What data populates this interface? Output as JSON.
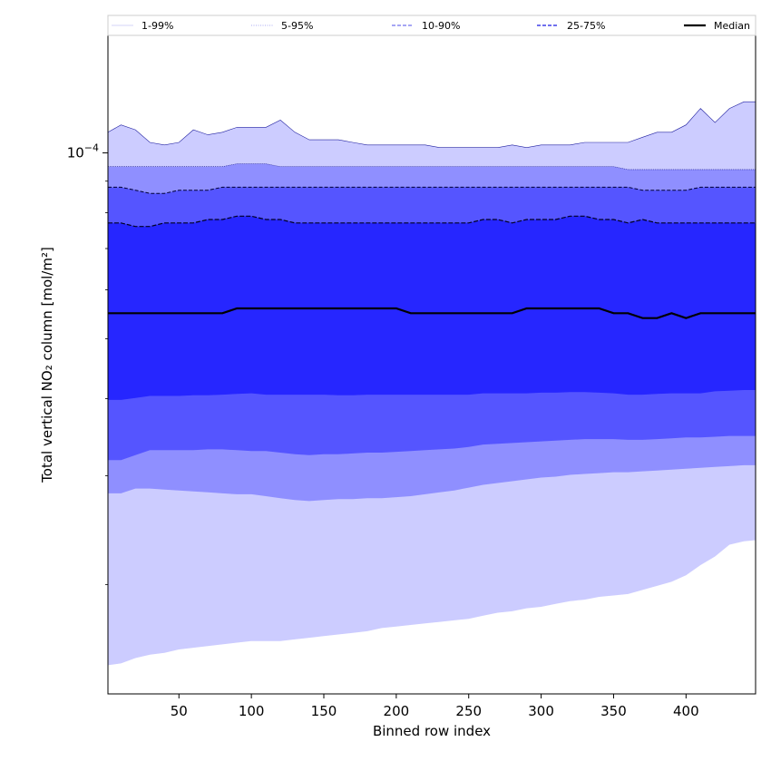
{
  "chart_data": {
    "type": "area",
    "xlabel": "Binned row index",
    "ylabel": "Total vertical NO₂ column [mol/m²]",
    "y_scale": "log",
    "xlim": [
      1,
      448
    ],
    "ylim": [
      1.33e-05,
      0.000155
    ],
    "x_ticks": [
      50,
      100,
      150,
      200,
      250,
      300,
      350,
      400
    ],
    "y_major_ticks": [
      {
        "value": 0.0001,
        "label_base": "10",
        "label_exp": "−4"
      }
    ],
    "y_minor_ticks": [
      2e-05,
      3e-05,
      4e-05,
      5e-05,
      6e-05,
      7e-05,
      8e-05,
      9e-05
    ],
    "grid": false,
    "legend": {
      "placement": "top",
      "entries": [
        {
          "label": "1-99%",
          "color": "#c8c8f5",
          "dash": "solid"
        },
        {
          "label": "5-95%",
          "color": "#8c8cf0",
          "dash": "dotted"
        },
        {
          "label": "10-90%",
          "color": "#7070ee",
          "dash": "dashed"
        },
        {
          "label": "25-75%",
          "color": "#4040e8",
          "dash": "dashed"
        },
        {
          "label": "Median",
          "color": "#000000",
          "dash": "solid"
        }
      ]
    },
    "band_colors": {
      "p01_p99": "#ccccff",
      "p05_p95": "#8f8fff",
      "p10_p90": "#5555ff",
      "p25_p75": "#2626ff"
    },
    "x": [
      1,
      10,
      20,
      30,
      40,
      50,
      60,
      70,
      80,
      90,
      100,
      110,
      120,
      130,
      140,
      150,
      160,
      170,
      180,
      190,
      200,
      210,
      220,
      230,
      240,
      250,
      260,
      270,
      280,
      290,
      300,
      310,
      320,
      330,
      340,
      350,
      360,
      370,
      380,
      390,
      400,
      410,
      420,
      430,
      440,
      448
    ],
    "series": [
      {
        "name": "1-99%",
        "kind": "upper",
        "values": [
          0.000108,
          0.000111,
          0.000109,
          0.000104,
          0.000103,
          0.000104,
          0.000109,
          0.000107,
          0.000108,
          0.00011,
          0.00011,
          0.00011,
          0.000113,
          0.000108,
          0.000105,
          0.000105,
          0.000105,
          0.000104,
          0.000103,
          0.000103,
          0.000103,
          0.000103,
          0.000103,
          0.000102,
          0.000102,
          0.000102,
          0.000102,
          0.000102,
          0.000103,
          0.000102,
          0.000103,
          0.000103,
          0.000103,
          0.000104,
          0.000104,
          0.000104,
          0.000104,
          0.000106,
          0.000108,
          0.000108,
          0.000111,
          0.000118,
          0.000112,
          0.000118,
          0.000121,
          0.000121
        ]
      },
      {
        "name": "5-95%",
        "kind": "upper",
        "values": [
          9.5e-05,
          9.5e-05,
          9.5e-05,
          9.5e-05,
          9.5e-05,
          9.5e-05,
          9.5e-05,
          9.5e-05,
          9.5e-05,
          9.6e-05,
          9.6e-05,
          9.6e-05,
          9.5e-05,
          9.5e-05,
          9.5e-05,
          9.5e-05,
          9.5e-05,
          9.5e-05,
          9.5e-05,
          9.5e-05,
          9.5e-05,
          9.5e-05,
          9.5e-05,
          9.5e-05,
          9.5e-05,
          9.5e-05,
          9.5e-05,
          9.5e-05,
          9.5e-05,
          9.5e-05,
          9.5e-05,
          9.5e-05,
          9.5e-05,
          9.5e-05,
          9.5e-05,
          9.5e-05,
          9.4e-05,
          9.4e-05,
          9.4e-05,
          9.4e-05,
          9.4e-05,
          9.4e-05,
          9.4e-05,
          9.4e-05,
          9.4e-05,
          9.4e-05
        ]
      },
      {
        "name": "10-90%",
        "kind": "upper",
        "values": [
          8.8e-05,
          8.8e-05,
          8.7e-05,
          8.6e-05,
          8.6e-05,
          8.7e-05,
          8.7e-05,
          8.7e-05,
          8.8e-05,
          8.8e-05,
          8.8e-05,
          8.8e-05,
          8.8e-05,
          8.8e-05,
          8.8e-05,
          8.8e-05,
          8.8e-05,
          8.8e-05,
          8.8e-05,
          8.8e-05,
          8.8e-05,
          8.8e-05,
          8.8e-05,
          8.8e-05,
          8.8e-05,
          8.8e-05,
          8.8e-05,
          8.8e-05,
          8.8e-05,
          8.8e-05,
          8.8e-05,
          8.8e-05,
          8.8e-05,
          8.8e-05,
          8.8e-05,
          8.8e-05,
          8.8e-05,
          8.7e-05,
          8.7e-05,
          8.7e-05,
          8.7e-05,
          8.8e-05,
          8.8e-05,
          8.8e-05,
          8.8e-05,
          8.8e-05
        ]
      },
      {
        "name": "25-75%",
        "kind": "upper",
        "values": [
          7.7e-05,
          7.7e-05,
          7.6e-05,
          7.6e-05,
          7.7e-05,
          7.7e-05,
          7.7e-05,
          7.8e-05,
          7.8e-05,
          7.9e-05,
          7.9e-05,
          7.8e-05,
          7.8e-05,
          7.7e-05,
          7.7e-05,
          7.7e-05,
          7.7e-05,
          7.7e-05,
          7.7e-05,
          7.7e-05,
          7.7e-05,
          7.7e-05,
          7.7e-05,
          7.7e-05,
          7.7e-05,
          7.7e-05,
          7.8e-05,
          7.8e-05,
          7.7e-05,
          7.8e-05,
          7.8e-05,
          7.8e-05,
          7.9e-05,
          7.9e-05,
          7.8e-05,
          7.8e-05,
          7.7e-05,
          7.8e-05,
          7.7e-05,
          7.7e-05,
          7.7e-05,
          7.7e-05,
          7.7e-05,
          7.7e-05,
          7.7e-05,
          7.7e-05
        ]
      },
      {
        "name": "Median",
        "kind": "median",
        "values": [
          5.5e-05,
          5.5e-05,
          5.5e-05,
          5.5e-05,
          5.5e-05,
          5.5e-05,
          5.5e-05,
          5.5e-05,
          5.5e-05,
          5.6e-05,
          5.6e-05,
          5.6e-05,
          5.6e-05,
          5.6e-05,
          5.6e-05,
          5.6e-05,
          5.6e-05,
          5.6e-05,
          5.6e-05,
          5.6e-05,
          5.6e-05,
          5.5e-05,
          5.5e-05,
          5.5e-05,
          5.5e-05,
          5.5e-05,
          5.5e-05,
          5.5e-05,
          5.5e-05,
          5.6e-05,
          5.6e-05,
          5.6e-05,
          5.6e-05,
          5.6e-05,
          5.6e-05,
          5.5e-05,
          5.5e-05,
          5.4e-05,
          5.4e-05,
          5.5e-05,
          5.4e-05,
          5.5e-05,
          5.5e-05,
          5.5e-05,
          5.5e-05,
          5.5e-05
        ]
      },
      {
        "name": "25-75%",
        "kind": "lower",
        "values": [
          3.98e-05,
          3.98e-05,
          4.01e-05,
          4.04e-05,
          4.04e-05,
          4.04e-05,
          4.05e-05,
          4.05e-05,
          4.06e-05,
          4.07e-05,
          4.08e-05,
          4.06e-05,
          4.06e-05,
          4.06e-05,
          4.06e-05,
          4.06e-05,
          4.05e-05,
          4.05e-05,
          4.06e-05,
          4.06e-05,
          4.06e-05,
          4.06e-05,
          4.06e-05,
          4.06e-05,
          4.06e-05,
          4.06e-05,
          4.08e-05,
          4.08e-05,
          4.08e-05,
          4.08e-05,
          4.09e-05,
          4.09e-05,
          4.1e-05,
          4.1e-05,
          4.09e-05,
          4.08e-05,
          4.06e-05,
          4.06e-05,
          4.07e-05,
          4.08e-05,
          4.08e-05,
          4.08e-05,
          4.11e-05,
          4.12e-05,
          4.13e-05,
          4.13e-05
        ]
      },
      {
        "name": "10-90%",
        "kind": "lower",
        "values": [
          3.18e-05,
          3.18e-05,
          3.24e-05,
          3.3e-05,
          3.3e-05,
          3.3e-05,
          3.3e-05,
          3.31e-05,
          3.31e-05,
          3.3e-05,
          3.29e-05,
          3.29e-05,
          3.27e-05,
          3.25e-05,
          3.24e-05,
          3.25e-05,
          3.25e-05,
          3.26e-05,
          3.27e-05,
          3.27e-05,
          3.28e-05,
          3.29e-05,
          3.3e-05,
          3.31e-05,
          3.32e-05,
          3.34e-05,
          3.37e-05,
          3.38e-05,
          3.39e-05,
          3.4e-05,
          3.41e-05,
          3.42e-05,
          3.43e-05,
          3.44e-05,
          3.44e-05,
          3.44e-05,
          3.43e-05,
          3.43e-05,
          3.44e-05,
          3.45e-05,
          3.46e-05,
          3.46e-05,
          3.47e-05,
          3.48e-05,
          3.48e-05,
          3.48e-05
        ]
      },
      {
        "name": "5-95%",
        "kind": "lower",
        "values": [
          2.81e-05,
          2.81e-05,
          2.86e-05,
          2.86e-05,
          2.85e-05,
          2.84e-05,
          2.83e-05,
          2.82e-05,
          2.81e-05,
          2.8e-05,
          2.8e-05,
          2.78e-05,
          2.76e-05,
          2.74e-05,
          2.73e-05,
          2.74e-05,
          2.75e-05,
          2.75e-05,
          2.76e-05,
          2.76e-05,
          2.77e-05,
          2.78e-05,
          2.8e-05,
          2.82e-05,
          2.84e-05,
          2.87e-05,
          2.9e-05,
          2.92e-05,
          2.94e-05,
          2.96e-05,
          2.98e-05,
          2.99e-05,
          3.01e-05,
          3.02e-05,
          3.03e-05,
          3.04e-05,
          3.04e-05,
          3.05e-05,
          3.06e-05,
          3.07e-05,
          3.08e-05,
          3.09e-05,
          3.1e-05,
          3.11e-05,
          3.12e-05,
          3.12e-05
        ]
      },
      {
        "name": "1-99%",
        "kind": "lower",
        "values": [
          1.48e-05,
          1.49e-05,
          1.52e-05,
          1.54e-05,
          1.55e-05,
          1.57e-05,
          1.58e-05,
          1.59e-05,
          1.6e-05,
          1.61e-05,
          1.62e-05,
          1.62e-05,
          1.62e-05,
          1.63e-05,
          1.64e-05,
          1.65e-05,
          1.66e-05,
          1.67e-05,
          1.68e-05,
          1.7e-05,
          1.71e-05,
          1.72e-05,
          1.73e-05,
          1.74e-05,
          1.75e-05,
          1.76e-05,
          1.78e-05,
          1.8e-05,
          1.81e-05,
          1.83e-05,
          1.84e-05,
          1.86e-05,
          1.88e-05,
          1.89e-05,
          1.91e-05,
          1.92e-05,
          1.93e-05,
          1.96e-05,
          1.99e-05,
          2.02e-05,
          2.07e-05,
          2.15e-05,
          2.22e-05,
          2.32e-05,
          2.35e-05,
          2.36e-05
        ]
      }
    ]
  }
}
